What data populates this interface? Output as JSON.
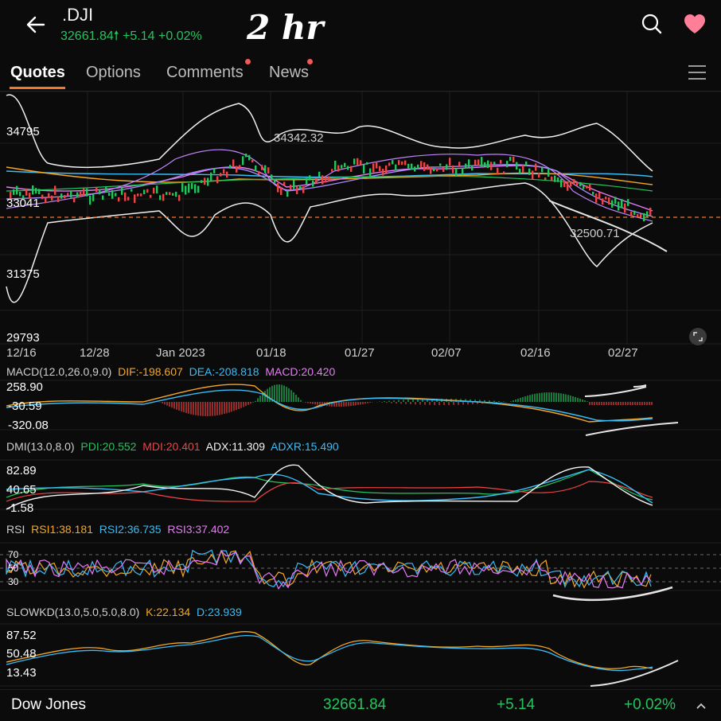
{
  "header": {
    "symbol": ".DJI",
    "price": "32661.84",
    "change": "+5.14",
    "change_pct": "+0.02%",
    "handwritten_note": "2 hr",
    "back_icon": "back-arrow-icon",
    "search_icon": "search-icon",
    "favorite_icon": "heart-icon"
  },
  "tabs": [
    {
      "label": "Quotes",
      "active": true,
      "badge": false
    },
    {
      "label": "Options",
      "active": false,
      "badge": false
    },
    {
      "label": "Comments",
      "active": false,
      "badge": true
    },
    {
      "label": "News",
      "active": false,
      "badge": true
    }
  ],
  "main_chart": {
    "y_ticks": [
      "34795",
      "33041",
      "31375",
      "29793"
    ],
    "x_ticks": [
      "12/16",
      "12/28",
      "Jan 2023",
      "01/18",
      "01/27",
      "02/07",
      "02/16",
      "02/27"
    ],
    "annotation_high": "34342.32",
    "annotation_low": "32500.71",
    "last_price_line": "#f07a2a"
  },
  "macd": {
    "name": "MACD(12.0,26.0,9.0)",
    "dif": "DIF:-198.607",
    "dea": "DEA:-208.818",
    "macd": "MACD:20.420",
    "y_ticks": [
      "258.90",
      "-30.59",
      "-320.08"
    ]
  },
  "dmi": {
    "name": "DMI(13.0,8.0)",
    "pdi": "PDI:20.552",
    "mdi": "MDI:20.401",
    "adx": "ADX:11.309",
    "adxr": "ADXR:15.490",
    "y_ticks": [
      "82.89",
      "40.65",
      "-1.58"
    ]
  },
  "rsi": {
    "name": "RSI",
    "rsi1": "RSI1:38.181",
    "rsi2": "RSI2:36.735",
    "rsi3": "RSI3:37.402",
    "y_ticks": [
      "70",
      "50",
      "30"
    ]
  },
  "slowkd": {
    "name": "SLOWKD(13.0,5.0,5.0,8.0)",
    "k": "K:22.134",
    "d": "D:23.939",
    "y_ticks": [
      "87.52",
      "50.48",
      "13.43"
    ]
  },
  "footer": {
    "name": "Dow Jones",
    "price": "32661.84",
    "change": "+5.14",
    "change_pct": "+0.02%"
  },
  "colors": {
    "up": "#22c55e",
    "down": "#ef4444",
    "accent": "#f07a2a",
    "dif": "#f5a623",
    "dea": "#38bdf8",
    "macd": "#e879f9"
  }
}
